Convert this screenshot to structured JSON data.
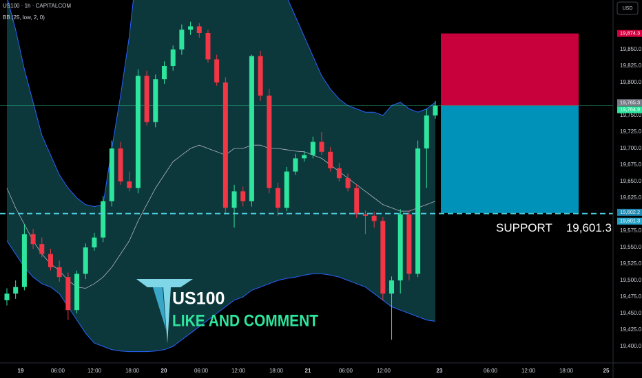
{
  "chart_data": {
    "type": "candlestick",
    "title": "US100 · 1h · CAPITALCOM",
    "indicator": "BB (25, low, 2, 0)",
    "currency": "USD",
    "ylim": [
      19375,
      19925
    ],
    "yticks": [
      {
        "value": 19400,
        "label": "19,400.0"
      },
      {
        "value": 19425,
        "label": "19,425.0"
      },
      {
        "value": 19450,
        "label": "19,450.0"
      },
      {
        "value": 19475,
        "label": "19,475.0"
      },
      {
        "value": 19500,
        "label": "19,500.0"
      },
      {
        "value": 19525,
        "label": "19,525.0"
      },
      {
        "value": 19550,
        "label": "19,550.0"
      },
      {
        "value": 19575,
        "label": "19,575.0"
      },
      {
        "value": 19625,
        "label": "19,625.0"
      },
      {
        "value": 19650,
        "label": "19,650.0"
      },
      {
        "value": 19675,
        "label": "19,675.0"
      },
      {
        "value": 19700,
        "label": "19,700.0"
      },
      {
        "value": 19725,
        "label": "19,725.0"
      },
      {
        "value": 19750,
        "label": "19,750.0"
      },
      {
        "value": 19800,
        "label": "19,800.0"
      },
      {
        "value": 19825,
        "label": "19,825.0"
      },
      {
        "value": 19850,
        "label": "19,850.0"
      }
    ],
    "xtick_labels": [
      "19",
      "06:00",
      "12:00",
      "18:00",
      "20",
      "06:00",
      "12:00",
      "18:00",
      "21",
      "06:00",
      "12:00",
      "23",
      "06:00",
      "12:00",
      "18:00",
      "25"
    ],
    "up_color": "#2ee59d",
    "down_color": "#f23645",
    "open": [
      19470,
      19480,
      19490,
      19570,
      19555,
      19540,
      19520,
      19505,
      19455,
      19510,
      19550,
      19565,
      19620,
      19700,
      19650,
      19640,
      19810,
      19740,
      19805,
      19825,
      19850,
      19880,
      19885,
      19875,
      19835,
      19800,
      19610,
      19635,
      19620,
      19840,
      19780,
      19640,
      19610,
      19665,
      19685,
      19690,
      19710,
      19695,
      19670,
      19655,
      19640,
      19600,
      19598,
      19590,
      19480,
      19500,
      19600,
      19510,
      19700,
      19750
    ],
    "high": [
      19488,
      19500,
      19585,
      19578,
      19565,
      19548,
      19530,
      19512,
      19515,
      19556,
      19572,
      19628,
      19712,
      19710,
      19665,
      19820,
      19818,
      19812,
      19832,
      19856,
      19888,
      19892,
      19890,
      19880,
      19842,
      19808,
      19645,
      19642,
      19842,
      19848,
      19790,
      19648,
      19672,
      19692,
      19696,
      19718,
      19725,
      19702,
      19678,
      19662,
      19646,
      19606,
      19604,
      19596,
      19506,
      19608,
      19606,
      19712,
      19760,
      19772
    ],
    "low": [
      19462,
      19472,
      19485,
      19548,
      19535,
      19515,
      19498,
      19440,
      19450,
      19502,
      19545,
      19558,
      19612,
      19645,
      19635,
      19632,
      19735,
      19732,
      19798,
      19818,
      19842,
      19872,
      19868,
      19830,
      19795,
      19600,
      19580,
      19612,
      19612,
      19772,
      19632,
      19598,
      19605,
      19660,
      19680,
      19685,
      19690,
      19665,
      19650,
      19635,
      19595,
      19570,
      19580,
      19470,
      19410,
      19480,
      19500,
      19505,
      19640,
      19745
    ],
    "close": [
      19480,
      19490,
      19570,
      19555,
      19540,
      19520,
      19505,
      19455,
      19510,
      19550,
      19565,
      19620,
      19700,
      19650,
      19640,
      19810,
      19740,
      19805,
      19825,
      19850,
      19880,
      19885,
      19875,
      19835,
      19800,
      19610,
      19635,
      19620,
      19840,
      19780,
      19640,
      19610,
      19665,
      19685,
      19690,
      19710,
      19695,
      19670,
      19655,
      19640,
      19600,
      19598,
      19590,
      19480,
      19500,
      19600,
      19510,
      19700,
      19750,
      19765
    ],
    "bb_upper": [
      19930,
      19880,
      19820,
      19770,
      19720,
      19690,
      19660,
      19640,
      19625,
      19615,
      19612,
      19615,
      19700,
      19780,
      19870,
      19990,
      20050,
      20080,
      20090,
      20090,
      20080,
      20070,
      20060,
      20040,
      20020,
      20000,
      19990,
      19980,
      19990,
      19990,
      19980,
      19960,
      19930,
      19900,
      19870,
      19840,
      19810,
      19790,
      19775,
      19765,
      19760,
      19755,
      19755,
      19750,
      19765,
      19770,
      19760,
      19755,
      19760,
      19770
    ],
    "bb_lower": [
      19560,
      19540,
      19520,
      19505,
      19495,
      19490,
      19480,
      19460,
      19440,
      19420,
      19405,
      19400,
      19395,
      19393,
      19392,
      19392,
      19392,
      19393,
      19395,
      19400,
      19410,
      19420,
      19430,
      19440,
      19450,
      19460,
      19470,
      19475,
      19485,
      19490,
      19495,
      19500,
      19503,
      19505,
      19508,
      19510,
      19510,
      19508,
      19505,
      19500,
      19495,
      19490,
      19480,
      19470,
      19460,
      19455,
      19450,
      19445,
      19440,
      19438
    ],
    "bb_basis": [
      19640,
      19610,
      19585,
      19560,
      19540,
      19525,
      19515,
      19500,
      19490,
      19488,
      19495,
      19505,
      19520,
      19540,
      19560,
      19590,
      19615,
      19640,
      19660,
      19680,
      19690,
      19700,
      19705,
      19700,
      19695,
      19690,
      19700,
      19700,
      19705,
      19705,
      19700,
      19700,
      19698,
      19696,
      19695,
      19690,
      19685,
      19675,
      19665,
      19655,
      19645,
      19635,
      19625,
      19615,
      19610,
      19605,
      19605,
      19610,
      19615,
      19620
    ],
    "position": {
      "stop": 19874.3,
      "entry": 19764.9,
      "target": 19602.2
    },
    "price_labels": [
      {
        "value": 19874.3,
        "label": "19,874.3",
        "color": "#d4003f"
      },
      {
        "value": 19765.3,
        "label": "19,765.3",
        "color": "#787b86"
      },
      {
        "value": 19764.9,
        "label": "19,764.9",
        "color": "#2ee59d"
      },
      {
        "value": 19602.2,
        "label": "19,602.2",
        "color": "#1e88b0"
      },
      {
        "value": 19601.3,
        "label": "19,601.3",
        "color": "#26a3c8"
      }
    ],
    "support": {
      "label": "SUPPORT",
      "value": 19601.3,
      "value_label": "19,601.3"
    },
    "logo_title": "US100",
    "logo_subtitle": "LIKE AND COMMENT"
  }
}
